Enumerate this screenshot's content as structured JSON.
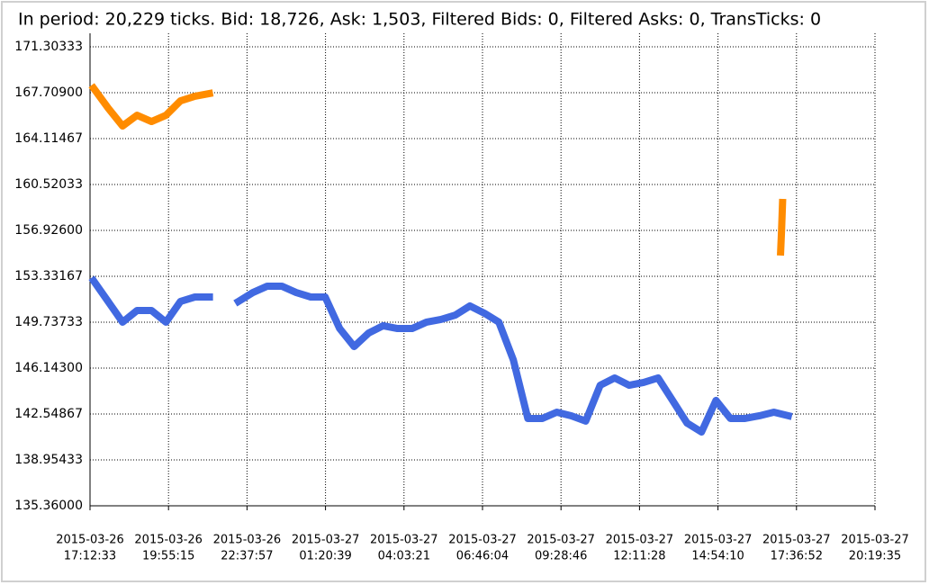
{
  "chart_data": {
    "type": "line",
    "title": "In period: 20,229 ticks. Bid: 18,726, Ask: 1,503, Filtered Bids: 0, Filtered Asks: 0, TransTicks: 0",
    "xlim": [
      "2015-03-26T17:12:33",
      "2015-03-27T20:19:35"
    ],
    "xticks": [
      {
        "value": "2015-03-26T17:12:33",
        "label": [
          "2015-03-26",
          "17:12:33"
        ]
      },
      {
        "value": "2015-03-26T19:55:15",
        "label": [
          "2015-03-26",
          "19:55:15"
        ]
      },
      {
        "value": "2015-03-26T22:37:57",
        "label": [
          "2015-03-26",
          "22:37:57"
        ]
      },
      {
        "value": "2015-03-27T01:20:39",
        "label": [
          "2015-03-27",
          "01:20:39"
        ]
      },
      {
        "value": "2015-03-27T04:03:21",
        "label": [
          "2015-03-27",
          "04:03:21"
        ]
      },
      {
        "value": "2015-03-27T06:46:04",
        "label": [
          "2015-03-27",
          "06:46:04"
        ]
      },
      {
        "value": "2015-03-27T09:28:46",
        "label": [
          "2015-03-27",
          "09:28:46"
        ]
      },
      {
        "value": "2015-03-27T12:11:28",
        "label": [
          "2015-03-27",
          "12:11:28"
        ]
      },
      {
        "value": "2015-03-27T14:54:10",
        "label": [
          "2015-03-27",
          "14:54:10"
        ]
      },
      {
        "value": "2015-03-27T17:36:52",
        "label": [
          "2015-03-27",
          "17:36:52"
        ]
      },
      {
        "value": "2015-03-27T20:19:35",
        "label": [
          "2015-03-27",
          "20:19:35"
        ]
      }
    ],
    "ylim": [
      135.36,
      172.36
    ],
    "yticks": [
      {
        "value": 135.36,
        "label": "135.36000"
      },
      138.95433,
      142.54867,
      {
        "value": 146.143,
        "label": "146.14300"
      },
      149.73733,
      153.33167,
      {
        "value": 156.926,
        "label": "156.92600"
      },
      160.52033,
      164.11467,
      {
        "value": 167.709,
        "label": "167.70900"
      },
      171.30333
    ],
    "grid": true,
    "series": [
      {
        "color": "#4169e1",
        "x": [
          "2015-03-26T17:20",
          "2015-03-26T17:50",
          "2015-03-26T18:20",
          "2015-03-26T18:50",
          "2015-03-26T19:20",
          "2015-03-26T19:50",
          "2015-03-26T20:20",
          "2015-03-26T20:50",
          "2015-03-26T21:20",
          "2015-03-26T21:50",
          "2015-03-26T22:20",
          "2015-03-26T22:50",
          "2015-03-26T23:20",
          "2015-03-26T23:50",
          "2015-03-27T00:20",
          "2015-03-27T00:50",
          "2015-03-27T01:20",
          "2015-03-27T01:50",
          "2015-03-27T02:20",
          "2015-03-27T02:50",
          "2015-03-27T03:20",
          "2015-03-27T03:50",
          "2015-03-27T04:20",
          "2015-03-27T04:50",
          "2015-03-27T05:20",
          "2015-03-27T05:50",
          "2015-03-27T06:20",
          "2015-03-27T06:50",
          "2015-03-27T07:20",
          "2015-03-27T07:50",
          "2015-03-27T08:20",
          "2015-03-27T08:50",
          "2015-03-27T09:20",
          "2015-03-27T09:50",
          "2015-03-27T10:20",
          "2015-03-27T10:50",
          "2015-03-27T11:20",
          "2015-03-27T11:50",
          "2015-03-27T12:20",
          "2015-03-27T12:50",
          "2015-03-27T13:20",
          "2015-03-27T13:50",
          "2015-03-27T14:20",
          "2015-03-27T14:50",
          "2015-03-27T15:20",
          "2015-03-27T15:50",
          "2015-03-27T16:20",
          "2015-03-27T16:50",
          "2015-03-27T17:20"
        ],
        "values": [
          152.98,
          151.36,
          149.74,
          150.65,
          150.65,
          149.74,
          151.36,
          151.71,
          151.71,
          null,
          151.36,
          152.06,
          152.56,
          152.56,
          152.06,
          151.71,
          151.71,
          149.24,
          147.83,
          148.89,
          149.46,
          149.24,
          149.24,
          149.74,
          149.95,
          150.3,
          151.01,
          150.44,
          149.74,
          146.78,
          142.2,
          142.2,
          142.69,
          142.41,
          141.99,
          144.8,
          145.37,
          144.8,
          145.02,
          145.37,
          143.61,
          141.84,
          141.14,
          143.61,
          142.2,
          142.2,
          142.41,
          142.69,
          142.41
        ]
      },
      {
        "color": "#ff8c00",
        "x": [
          "2015-03-26T17:20",
          "2015-03-26T17:50",
          "2015-03-26T18:20",
          "2015-03-26T18:50",
          "2015-03-26T19:20",
          "2015-03-26T19:50",
          "2015-03-26T20:20",
          "2015-03-26T20:50",
          "2015-03-26T21:20",
          "2015-03-26T21:50",
          "2015-03-27T17:04",
          "2015-03-27T17:06",
          "2015-03-27T17:08"
        ],
        "values": [
          168.06,
          166.51,
          165.1,
          165.94,
          165.45,
          165.94,
          167.07,
          167.43,
          167.64,
          null,
          155.24,
          157.0,
          159.11
        ]
      }
    ]
  }
}
